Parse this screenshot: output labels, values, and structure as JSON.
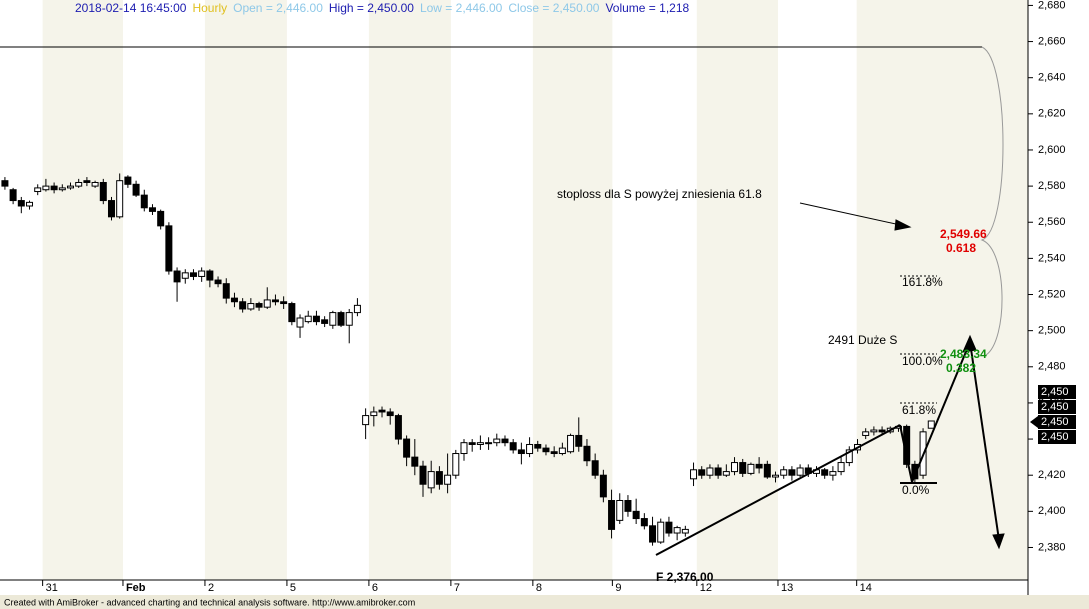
{
  "chart_data": {
    "type": "candlestick",
    "header": [
      {
        "text": "2018-02-14 16:45:00",
        "color": "#1c1cb0"
      },
      {
        "text": "Hourly",
        "color": "#e0c020"
      },
      {
        "text": "Open = 2,446.00",
        "color": "#8ec8e8"
      },
      {
        "text": "High = 2,450.00",
        "color": "#1c1cb0"
      },
      {
        "text": "Low = 2,446.00",
        "color": "#8ec8e8"
      },
      {
        "text": "Close = 2,450.00",
        "color": "#8ec8e8"
      },
      {
        "text": "Volume = 1,218",
        "color": "#1c1cb0"
      }
    ],
    "xlim": [
      -0.6,
      124.8
    ],
    "xticks": [
      {
        "value": 4.6,
        "label": "31"
      },
      {
        "value": 14.4,
        "label": "Feb"
      },
      {
        "value": 24.4,
        "label": "2"
      },
      {
        "value": 34.4,
        "label": "5"
      },
      {
        "value": 44.4,
        "label": "6"
      },
      {
        "value": 54.4,
        "label": "7"
      },
      {
        "value": 64.4,
        "label": "8"
      },
      {
        "value": 74.1,
        "label": "9"
      },
      {
        "value": 84.4,
        "label": "12"
      },
      {
        "value": 94.3,
        "label": "13"
      },
      {
        "value": 103.9,
        "label": "14"
      }
    ],
    "ylim": [
      2362,
      2683
    ],
    "yticks": [
      {
        "value": 2380,
        "label": "2,380"
      },
      {
        "value": 2400,
        "label": "2,400"
      },
      {
        "value": 2420,
        "label": "2,420"
      },
      {
        "value": 2440,
        "label": "2,440"
      },
      {
        "value": 2460,
        "label": "2,460"
      },
      {
        "value": 2480,
        "label": "2,480"
      },
      {
        "value": 2500,
        "label": "2,500"
      },
      {
        "value": 2520,
        "label": "2,520"
      },
      {
        "value": 2540,
        "label": "2,540"
      },
      {
        "value": 2560,
        "label": "2,560"
      },
      {
        "value": 2580,
        "label": "2,580"
      },
      {
        "value": 2600,
        "label": "2,600"
      },
      {
        "value": 2620,
        "label": "2,620"
      },
      {
        "value": 2640,
        "label": "2,640"
      },
      {
        "value": 2660,
        "label": "2,660"
      },
      {
        "value": 2680,
        "label": "2,680"
      }
    ],
    "open": [
      2583,
      2578,
      2572,
      2569,
      2577,
      2578,
      2580,
      2578,
      2579,
      2580,
      2583,
      2580,
      2582,
      2572,
      2563,
      2585,
      2581,
      2575,
      2568,
      2566,
      2558,
      2533,
      2529,
      2532,
      2530,
      2533,
      2528,
      2526,
      2518,
      2516,
      2512,
      2515,
      2513,
      2517,
      2516,
      2515,
      2502,
      2505,
      2508,
      2506,
      2503,
      2510,
      2503,
      2510,
      2448,
      2453,
      2456,
      2455,
      2453,
      2440,
      2430,
      2425,
      2413,
      2422,
      2415,
      2420,
      2432,
      2438,
      2437,
      2438,
      2438,
      2440,
      2438,
      2434,
      2432,
      2437,
      2435,
      2433,
      2432,
      2433,
      2442,
      2436,
      2428,
      2420,
      2406,
      2395,
      2406,
      2400,
      2396,
      2392,
      2383,
      2394,
      2388,
      2388,
      2418,
      2423,
      2420,
      2424,
      2420,
      2422,
      2427,
      2421,
      2426,
      2426,
      2419,
      2420,
      2423,
      2420,
      2424,
      2421,
      2423,
      2420,
      2422,
      2427,
      2434,
      2442,
      2444,
      2445,
      2444,
      2446,
      2447,
      2426,
      2420,
      2446
    ],
    "high": [
      2585,
      2579,
      2574,
      2572,
      2581,
      2584,
      2582,
      2581,
      2582,
      2584,
      2585,
      2583,
      2584,
      2574,
      2587,
      2586,
      2583,
      2578,
      2570,
      2567,
      2560,
      2535,
      2534,
      2534,
      2535,
      2534,
      2530,
      2529,
      2521,
      2518,
      2518,
      2516,
      2524,
      2520,
      2519,
      2516,
      2509,
      2511,
      2511,
      2508,
      2511,
      2511,
      2512,
      2518,
      2457,
      2458,
      2458,
      2457,
      2454,
      2442,
      2440,
      2428,
      2428,
      2425,
      2432,
      2434,
      2440,
      2440,
      2442,
      2441,
      2443,
      2442,
      2440,
      2438,
      2441,
      2439,
      2437,
      2436,
      2438,
      2443,
      2452,
      2440,
      2432,
      2423,
      2412,
      2410,
      2409,
      2407,
      2399,
      2397,
      2396,
      2397,
      2392,
      2392,
      2427,
      2425,
      2426,
      2426,
      2426,
      2430,
      2429,
      2427,
      2430,
      2428,
      2422,
      2425,
      2425,
      2426,
      2426,
      2425,
      2424,
      2425,
      2430,
      2436,
      2440,
      2446,
      2447,
      2447,
      2447,
      2448,
      2448,
      2428,
      2446,
      2450
    ],
    "low": [
      2578,
      2570,
      2565,
      2567,
      2575,
      2577,
      2576,
      2577,
      2578,
      2579,
      2580,
      2579,
      2570,
      2561,
      2562,
      2579,
      2574,
      2566,
      2564,
      2556,
      2531,
      2516,
      2526,
      2528,
      2527,
      2524,
      2524,
      2515,
      2513,
      2510,
      2511,
      2511,
      2512,
      2514,
      2512,
      2503,
      2496,
      2504,
      2503,
      2502,
      2501,
      2502,
      2493,
      2508,
      2440,
      2447,
      2452,
      2448,
      2437,
      2425,
      2420,
      2408,
      2410,
      2412,
      2410,
      2418,
      2428,
      2433,
      2434,
      2434,
      2436,
      2436,
      2432,
      2426,
      2430,
      2433,
      2431,
      2430,
      2431,
      2432,
      2433,
      2425,
      2418,
      2405,
      2385,
      2393,
      2397,
      2393,
      2390,
      2381,
      2382,
      2386,
      2384,
      2386,
      2414,
      2418,
      2418,
      2418,
      2419,
      2420,
      2419,
      2420,
      2421,
      2418,
      2416,
      2418,
      2417,
      2419,
      2419,
      2419,
      2418,
      2417,
      2420,
      2425,
      2432,
      2440,
      2442,
      2442,
      2443,
      2444,
      2424,
      2416,
      2418,
      2446
    ],
    "close": [
      2580,
      2572,
      2569,
      2571,
      2579,
      2580,
      2578,
      2579,
      2580,
      2582,
      2582,
      2582,
      2572,
      2563,
      2583,
      2581,
      2575,
      2568,
      2566,
      2558,
      2533,
      2527,
      2532,
      2530,
      2533,
      2528,
      2526,
      2518,
      2516,
      2512,
      2515,
      2513,
      2517,
      2516,
      2515,
      2505,
      2507,
      2508,
      2505,
      2504,
      2510,
      2503,
      2510,
      2514,
      2453,
      2455,
      2455,
      2453,
      2440,
      2430,
      2425,
      2415,
      2422,
      2415,
      2420,
      2432,
      2438,
      2437,
      2438,
      2438,
      2440,
      2438,
      2434,
      2432,
      2437,
      2435,
      2433,
      2432,
      2435,
      2442,
      2436,
      2428,
      2420,
      2408,
      2390,
      2406,
      2400,
      2396,
      2392,
      2383,
      2394,
      2388,
      2391,
      2390,
      2423,
      2420,
      2424,
      2420,
      2422,
      2427,
      2421,
      2426,
      2424,
      2419,
      2420,
      2423,
      2420,
      2424,
      2421,
      2423,
      2420,
      2422,
      2427,
      2434,
      2437,
      2444,
      2445,
      2444,
      2446,
      2447,
      2426,
      2418,
      2444,
      2450
    ],
    "annotations": {
      "stoploss": "stoploss dla S powyżej zniesienia 61.8",
      "target_price": "2,549.66",
      "target_ratio": "0.618",
      "fib_1618": "161.8%",
      "duze_s": "2491 Duże S",
      "fib_100": "100.0%",
      "level_price": "2,483.34",
      "level_ratio": "0.382",
      "fib_618": "61.8%",
      "fib_0": "0.0%",
      "low_label": "F  2,376.00"
    },
    "last_price_labels": [
      "2,450",
      "2,450",
      "2,450",
      "2,450"
    ],
    "footer": "Created with AmiBroker - advanced charting and technical analysis software. http://www.amibroker.com"
  }
}
